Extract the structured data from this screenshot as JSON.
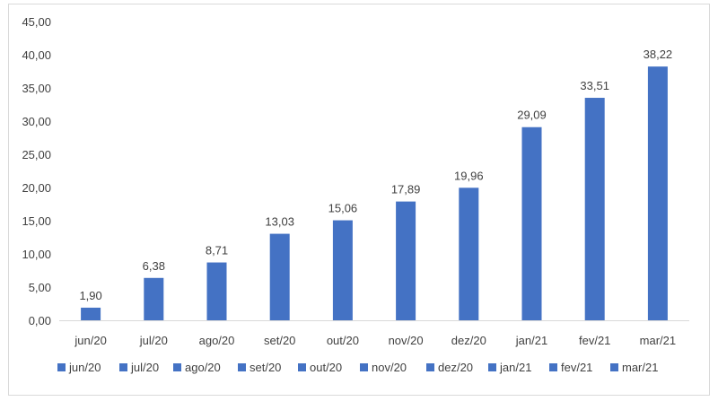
{
  "colors": {
    "bar": "#4472C4",
    "axis": "#D9D9D9",
    "text": "#404040",
    "frame": "#D9D9D9"
  },
  "chart_data": {
    "type": "bar",
    "categories": [
      "jun/20",
      "jul/20",
      "ago/20",
      "set/20",
      "out/20",
      "nov/20",
      "dez/20",
      "jan/21",
      "fev/21",
      "mar/21"
    ],
    "values": [
      1.9,
      6.38,
      8.71,
      13.03,
      15.06,
      17.89,
      19.96,
      29.09,
      33.51,
      38.22
    ],
    "data_labels": [
      "1,90",
      "6,38",
      "8,71",
      "13,03",
      "15,06",
      "17,89",
      "19,96",
      "29,09",
      "33,51",
      "38,22"
    ],
    "y_ticks": [
      "0,00",
      "5,00",
      "10,00",
      "15,00",
      "20,00",
      "25,00",
      "30,00",
      "35,00",
      "40,00",
      "45,00"
    ],
    "ylim": [
      0,
      45
    ],
    "title": "",
    "xlabel": "",
    "ylabel": "",
    "grid": false,
    "legend_position": "bottom",
    "legend_entries": [
      "jun/20",
      "jul/20",
      "ago/20",
      "set/20",
      "out/20",
      "nov/20",
      "dez/20",
      "jan/21",
      "fev/21",
      "mar/21"
    ]
  }
}
